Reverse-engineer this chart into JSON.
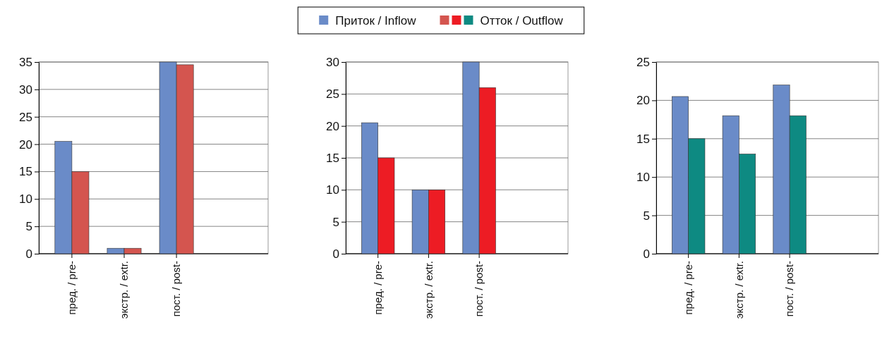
{
  "chart_data": [
    {
      "type": "bar",
      "categories": [
        "пред. / pre-",
        "экстр. / extr.",
        "пост. / post-"
      ],
      "ylim": [
        0,
        35
      ],
      "yticks": [
        0,
        5,
        10,
        15,
        20,
        25,
        30,
        35
      ],
      "grid": "y",
      "legend": "top",
      "series": [
        {
          "name": "Приток / Inflow",
          "color": "#6a8bc8",
          "values": [
            20.5,
            1,
            35
          ]
        },
        {
          "name": "Отток / Outflow",
          "color": "#d4554f",
          "values": [
            15,
            1,
            34.5
          ]
        }
      ]
    },
    {
      "type": "bar",
      "categories": [
        "пред. / pre-",
        "экстр. / extr.",
        "пост. / post-"
      ],
      "ylim": [
        0,
        30
      ],
      "yticks": [
        0,
        5,
        10,
        15,
        20,
        25,
        30
      ],
      "grid": "y",
      "series": [
        {
          "color": "#6a8bc8",
          "values": [
            20.5,
            10,
            30
          ]
        },
        {
          "color": "#ed1c24",
          "values": [
            15,
            10,
            26
          ]
        }
      ]
    },
    {
      "type": "bar",
      "categories": [
        "пред. / pre-",
        "экстр. / extr.",
        "пост. / post-"
      ],
      "ylim": [
        0,
        25
      ],
      "yticks": [
        0,
        5,
        10,
        15,
        20,
        25
      ],
      "grid": "y",
      "series": [
        {
          "color": "#6a8bc8",
          "values": [
            20.5,
            18,
            22
          ]
        },
        {
          "color": "#0e8a82",
          "values": [
            15,
            13,
            18
          ]
        }
      ]
    }
  ]
}
